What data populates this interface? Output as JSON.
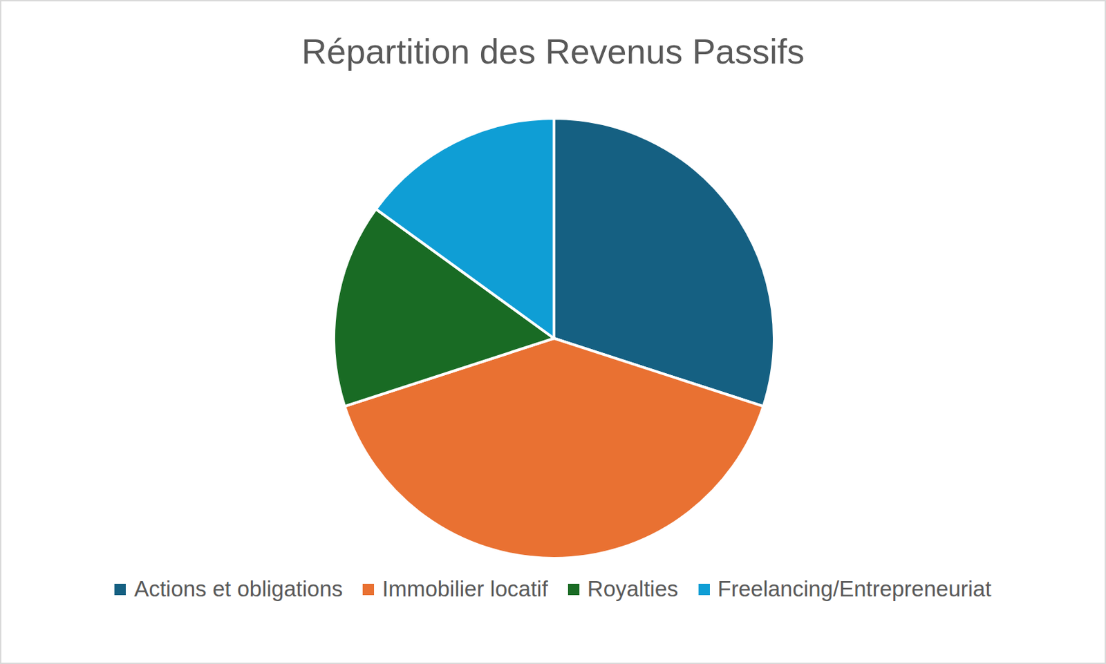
{
  "chart_data": {
    "type": "pie",
    "title": "Répartition des Revenus Passifs",
    "categories": [
      "Actions et obligations",
      "Immobilier locatif",
      "Royalties",
      "Freelancing/Entrepreneuriat"
    ],
    "values": [
      30,
      40,
      15,
      15
    ],
    "colors": [
      "#156082",
      "#e97132",
      "#196b24",
      "#0f9ed5"
    ],
    "legend": "bottom"
  }
}
